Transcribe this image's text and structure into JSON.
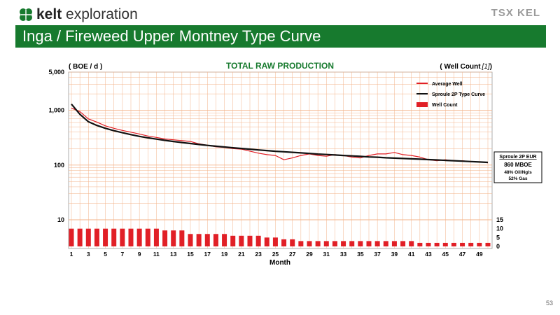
{
  "header": {
    "logo_name": "kelt",
    "logo_suffix": "exploration",
    "brand_badge": "TSX KEL",
    "title": "Inga / Fireweed Upper Montney Type Curve",
    "page_number": "53"
  },
  "colors": {
    "banner": "#177a2e",
    "average_well": "#e11f26",
    "type_curve": "#111111",
    "well_count": "#e11f26",
    "grid": "#f3b38a"
  },
  "chart_data": {
    "type": "line+bar",
    "title": "TOTAL RAW PRODUCTION",
    "left_axis_label": "( BOE / d )",
    "right_axis_label": "( Well Count",
    "right_axis_note": "[1]",
    "right_axis_close": ")",
    "xlabel": "Month",
    "x_ticks": [
      1,
      3,
      5,
      7,
      9,
      11,
      13,
      15,
      17,
      19,
      21,
      23,
      25,
      27,
      29,
      31,
      33,
      35,
      37,
      39,
      41,
      43,
      45,
      47,
      49
    ],
    "x_range": [
      1,
      50
    ],
    "y_scale": "log",
    "y_range": [
      10,
      5000
    ],
    "y_ticks": [
      "10",
      "100",
      "1,000",
      "5,000"
    ],
    "y_tick_values": [
      10,
      100,
      1000,
      5000
    ],
    "y2_ticks": [
      "0",
      "5",
      "10",
      "15"
    ],
    "y2_tick_values": [
      0,
      5,
      10,
      15
    ],
    "y2_range": [
      0,
      15
    ],
    "grid": true,
    "legend_position": "top-right",
    "legend": [
      "Average Well",
      "Sproule 2P Type Curve",
      "Well Count"
    ],
    "series": [
      {
        "name": "Average Well",
        "style": "line",
        "x": [
          1,
          2,
          3,
          4,
          5,
          6,
          7,
          8,
          9,
          10,
          11,
          12,
          13,
          14,
          15,
          16,
          17,
          18,
          19,
          20,
          21,
          22,
          23,
          24,
          25,
          26,
          27,
          28,
          29,
          30,
          31,
          32,
          33,
          34,
          35,
          36,
          37,
          38,
          39,
          40,
          41,
          42,
          43,
          44,
          45,
          46,
          47,
          48,
          49,
          50
        ],
        "values": [
          1100,
          950,
          700,
          610,
          520,
          470,
          430,
          400,
          370,
          340,
          320,
          300,
          290,
          280,
          270,
          245,
          230,
          215,
          210,
          200,
          195,
          180,
          165,
          155,
          150,
          125,
          135,
          150,
          160,
          150,
          145,
          155,
          150,
          140,
          135,
          150,
          160,
          160,
          170,
          155,
          150,
          140,
          125,
          120,
          125,
          120,
          120,
          115,
          115,
          110
        ]
      },
      {
        "name": "Sproule 2P Type Curve",
        "style": "line",
        "x": [
          1,
          2,
          3,
          4,
          5,
          6,
          7,
          8,
          9,
          10,
          11,
          12,
          13,
          14,
          15,
          16,
          17,
          18,
          19,
          20,
          21,
          22,
          23,
          24,
          25,
          26,
          27,
          28,
          29,
          30,
          31,
          32,
          33,
          34,
          35,
          36,
          37,
          38,
          39,
          40,
          41,
          42,
          43,
          44,
          45,
          46,
          47,
          48,
          49,
          50
        ],
        "values": [
          1300,
          850,
          620,
          530,
          470,
          425,
          390,
          360,
          335,
          315,
          298,
          283,
          270,
          258,
          248,
          238,
          229,
          221,
          214,
          207,
          201,
          195,
          189,
          184,
          179,
          175,
          171,
          167,
          163,
          159,
          156,
          153,
          150,
          147,
          144,
          141,
          139,
          136,
          134,
          132,
          130,
          128,
          126,
          124,
          122,
          120,
          118,
          116,
          114,
          112
        ]
      },
      {
        "name": "Well Count",
        "style": "bar",
        "x": [
          1,
          2,
          3,
          4,
          5,
          6,
          7,
          8,
          9,
          10,
          11,
          12,
          13,
          14,
          15,
          16,
          17,
          18,
          19,
          20,
          21,
          22,
          23,
          24,
          25,
          26,
          27,
          28,
          29,
          30,
          31,
          32,
          33,
          34,
          35,
          36,
          37,
          38,
          39,
          40,
          41,
          42,
          43,
          44,
          45,
          46,
          47,
          48,
          49,
          50
        ],
        "values": [
          10,
          10,
          10,
          10,
          10,
          10,
          10,
          10,
          10,
          10,
          10,
          9,
          9,
          9,
          7,
          7,
          7,
          7,
          7,
          6,
          6,
          6,
          6,
          5,
          5,
          4,
          4,
          3,
          3,
          3,
          3,
          3,
          3,
          3,
          3,
          3,
          3,
          3,
          3,
          3,
          3,
          2,
          2,
          2,
          2,
          2,
          2,
          2,
          2,
          2
        ]
      }
    ],
    "annotation": {
      "title": "Sproule 2P EUR",
      "value": "860 MBOE",
      "line1": "48% Oil/Ngls",
      "line2": "52% Gas"
    }
  }
}
